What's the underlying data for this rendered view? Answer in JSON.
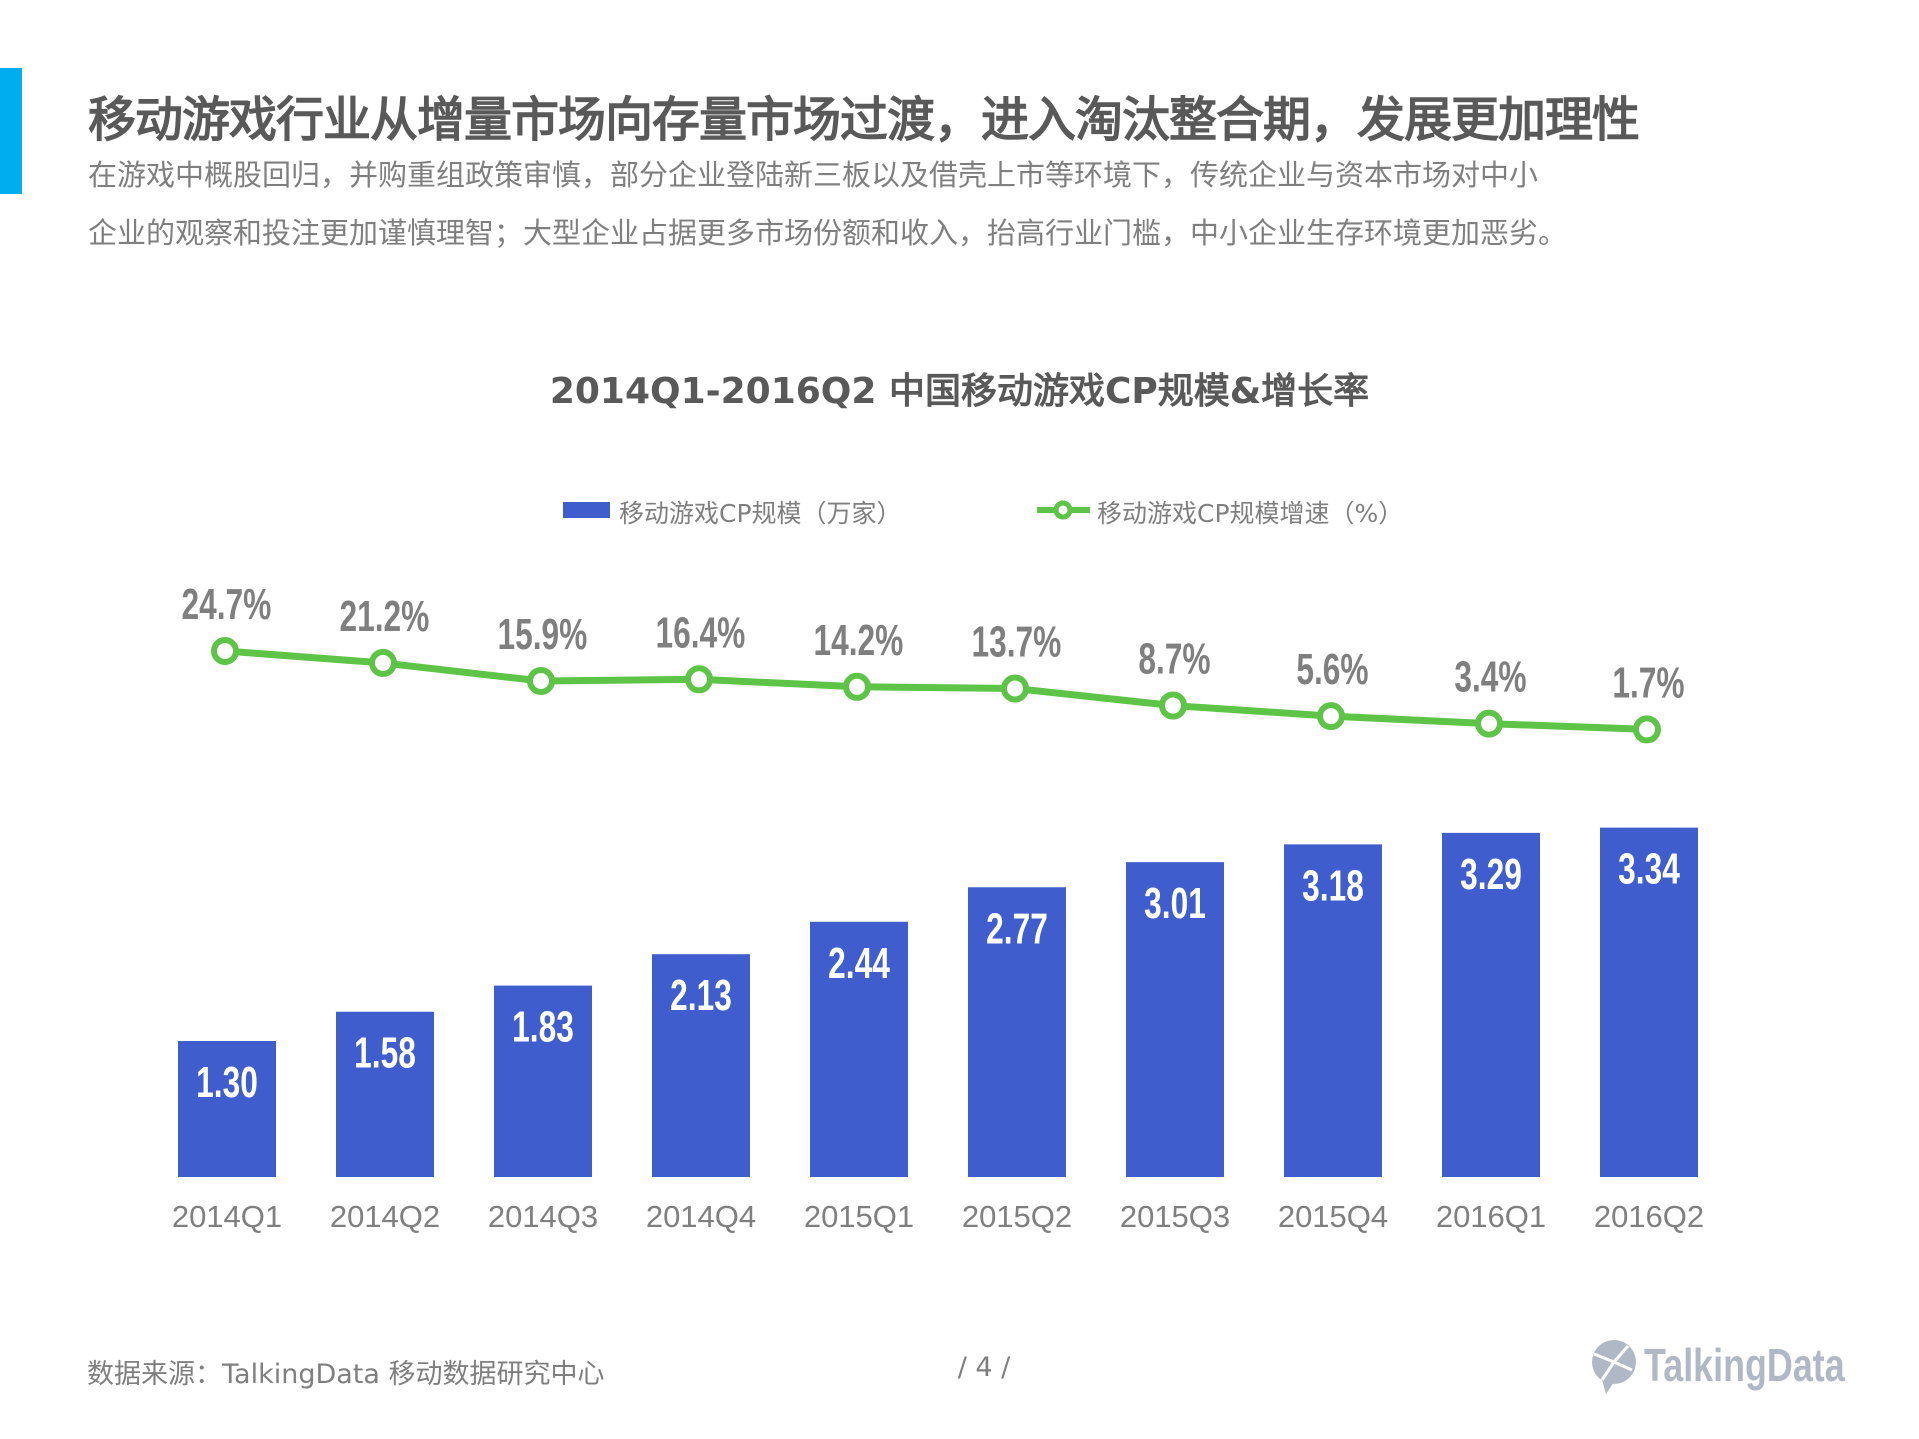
{
  "header": {
    "title": "移动游戏行业从增量市场向存量市场过渡，进入淘汰整合期，发展更加理性",
    "subtitle_lines": [
      "在游戏中概股回归，并购重组政策审慎，部分企业登陆新三板以及借壳上市等环境下，传统企业与资本市场对中小",
      "企业的观察和投注更加谨慎理智；大型企业占据更多市场份额和收入，抬高行业门槛，中小企业生存环境更加恶劣。"
    ],
    "accent_color": "#00aeef"
  },
  "chart_data": {
    "type": "bar+line",
    "title": "2014Q1-2016Q2 中国移动游戏CP规模&增长率",
    "categories": [
      "2014Q1",
      "2014Q2",
      "2014Q3",
      "2014Q4",
      "2015Q1",
      "2015Q2",
      "2015Q3",
      "2015Q4",
      "2016Q1",
      "2016Q2"
    ],
    "series": [
      {
        "name": "移动游戏CP规模（万家）",
        "type": "bar",
        "color": "#3f5dcc",
        "values": [
          1.3,
          1.58,
          1.83,
          2.13,
          2.44,
          2.77,
          3.01,
          3.18,
          3.29,
          3.34
        ],
        "labels": [
          "1.30",
          "1.58",
          "1.83",
          "2.13",
          "2.44",
          "2.77",
          "3.01",
          "3.18",
          "3.29",
          "3.34"
        ]
      },
      {
        "name": "移动游戏CP规模增速（%）",
        "type": "line",
        "color": "#5ec447",
        "values": [
          24.7,
          21.2,
          15.9,
          16.4,
          14.2,
          13.7,
          8.7,
          5.6,
          3.4,
          1.7
        ],
        "labels": [
          "24.7%",
          "21.2%",
          "15.9%",
          "16.4%",
          "14.2%",
          "13.7%",
          "8.7%",
          "5.6%",
          "3.4%",
          "1.7%"
        ]
      }
    ],
    "legend_placement": "top-center",
    "grid": false
  },
  "footer": {
    "source": "数据来源：TalkingData  移动数据研究中心",
    "page": "/  4  /",
    "logo": "TalkingData"
  }
}
